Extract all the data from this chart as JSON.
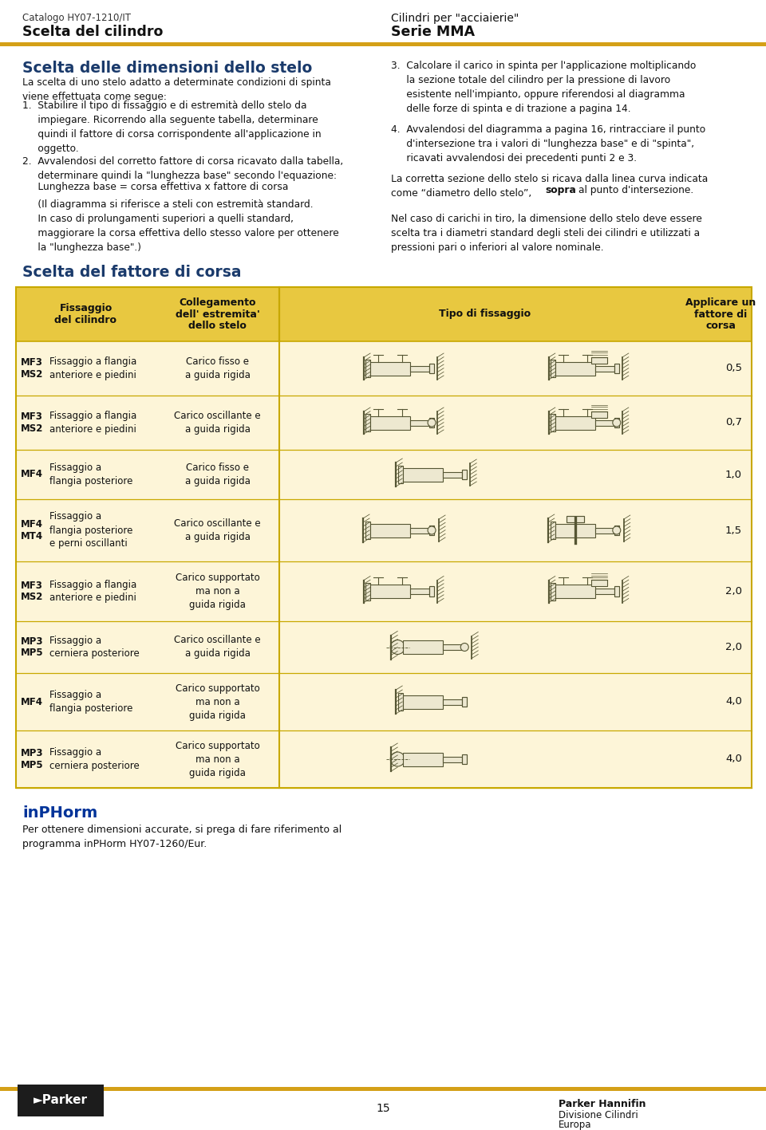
{
  "page_bg": "#ffffff",
  "header_line_color": "#D4A017",
  "header_top_left_small": "Catalogo HY07-1210/IT",
  "header_top_left_bold": "Scelta del cilindro",
  "header_top_right_small": "Cilindri per \"acciaierie\"",
  "header_top_right_bold": "Serie MMA",
  "section1_title": "Scelta delle dimensioni dello stelo",
  "section1_title_color": "#1a3a6b",
  "section1_body": "La scelta di uno stelo adatto a determinate condizioni di spinta\nviene effettuata come segue:",
  "item1": "1.  Stabilire il tipo di fissaggio e di estremità dello stelo da\n     impiegare. Ricorrendo alla seguente tabella, determinare\n     quindi il fattore di corsa corrispondente all'applicazione in\n     oggetto.",
  "item2_intro": "2.  Avvalendosi del corretto fattore di corsa ricavato dalla tabella,\n     determinare quindi la \"lunghezza base\" secondo l'equazione:",
  "item2_eq": "     Lunghezza base = corsa effettiva x fattore di corsa",
  "item2_note": "     (Il diagramma si riferisce a steli con estremità standard.\n     In caso di prolungamenti superiori a quelli standard,\n     maggiorare la corsa effettiva dello stesso valore per ottenere\n     la \"lunghezza base\".)",
  "item3": "3.  Calcolare il carico in spinta per l'applicazione moltiplicando\n     la sezione totale del cilindro per la pressione di lavoro\n     esistente nell'impianto, oppure riferendosi al diagramma\n     delle forze di spinta e di trazione a pagina 14.",
  "item4": "4.  Avvalendosi del diagramma a pagina 16, rintracciare il punto\n     d'intersezione tra i valori di \"lunghezza base\" e di \"spinta\",\n     ricavati avvalendosi dei precedenti punti 2 e 3.",
  "section_note": "La corretta sezione dello stelo si ricava dalla linea curva indicata\ncome “diametro dello stelo”, sopra al punto d'intersezione.",
  "section_note_bold": "sopra",
  "section_note2": "Nel caso di carichi in tiro, la dimensione dello stelo deve essere\nscelta tra i diametri standard degli steli dei cilindri e utilizzati a\npressioni pari o inferiori al valore nominale.",
  "table_title": "Scelta del fattore di corsa",
  "table_title_color": "#1a3a6b",
  "table_header_bg": "#e8c840",
  "table_row_bg": "#fdf5d8",
  "table_border_color": "#c8a800",
  "table_col_divider_color": "#c8a800",
  "col_headers": [
    "Fissaggio\ndel cilindro",
    "Collegamento\ndell' estremita'\ndello stelo",
    "Tipo di fissaggio",
    "Applicare un\nfattore di\ncorsa"
  ],
  "rows": [
    {
      "codes": "MF3\nMS2",
      "fix": "Fissaggio a flangia\nanteriore e piedini",
      "carico": "Carico fisso e\na guida rigida",
      "factor": "0,5",
      "diagrams": 2
    },
    {
      "codes": "MF3\nMS2",
      "fix": "Fissaggio a flangia\nanteriore e piedini",
      "carico": "Carico oscillante e\na guida rigida",
      "factor": "0,7",
      "diagrams": 2
    },
    {
      "codes": "MF4",
      "fix": "Fissaggio a\nflangia posteriore",
      "carico": "Carico fisso e\na guida rigida",
      "factor": "1,0",
      "diagrams": 1
    },
    {
      "codes": "MF4\nMT4",
      "fix": "Fissaggio a\nflangia posteriore\ne perni oscillanti",
      "carico": "Carico oscillante e\na guida rigida",
      "factor": "1,5",
      "diagrams": 2
    },
    {
      "codes": "MF3\nMS2",
      "fix": "Fissaggio a flangia\nanteriore e piedini",
      "carico": "Carico supportato\nma non a\nguida rigida",
      "factor": "2,0",
      "diagrams": 2
    },
    {
      "codes": "MP3\nMP5",
      "fix": "Fissaggio a\ncerniera posteriore",
      "carico": "Carico oscillante e\na guida rigida",
      "factor": "2,0",
      "diagrams": 1
    },
    {
      "codes": "MF4",
      "fix": "Fissaggio a\nflangia posteriore",
      "carico": "Carico supportato\nma non a\nguida rigida",
      "factor": "4,0",
      "diagrams": 1
    },
    {
      "codes": "MP3\nMP5",
      "fix": "Fissaggio a\ncerniera posteriore",
      "carico": "Carico supportato\nma non a\nguida rigida",
      "factor": "4,0",
      "diagrams": 1
    }
  ],
  "inphorm_title": "inPHorm",
  "inphorm_title_color": "#003399",
  "inphorm_body": "Per ottenere dimensioni accurate, si prega di fare riferimento al\nprogramma inPHorm HY07-1260/Eur.",
  "footer_line_color": "#D4A017",
  "footer_page": "15",
  "footer_company": "Parker Hannifin",
  "footer_division": "Divisione Cilindri",
  "footer_region": "Europa"
}
